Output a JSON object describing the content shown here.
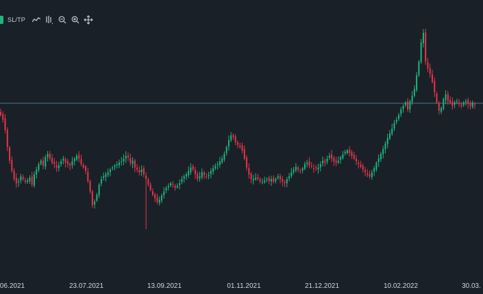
{
  "toolbar": {
    "sltp_label": "SL/TP",
    "icons": [
      "line-chart-icon",
      "bar-chart-icon",
      "zoom-out-icon",
      "zoom-in-icon",
      "crosshair-move-icon"
    ]
  },
  "colors": {
    "background": "#1a2027",
    "up": "#1fb57f",
    "down": "#e5354b",
    "price_line": "#4a7a8c",
    "axis_text": "#d0d7de"
  },
  "chart_data": {
    "type": "candlestick",
    "x_tick_labels": [
      "06.2021",
      "23.07.2021",
      "13.09.2021",
      "01.11.2021",
      "21.12.2021",
      "10.02.2022",
      "30.03."
    ],
    "grid": false,
    "current_price_line": true,
    "series_close_trace": [
      {
        "segment": "jun-2021",
        "values": [
          168,
          175,
          190,
          215,
          235,
          250,
          262,
          268,
          265,
          258,
          262,
          266,
          264,
          260,
          270
        ]
      },
      {
        "segment": "jul-2021",
        "values": [
          255,
          248,
          240,
          235,
          242,
          230,
          225,
          232,
          238,
          240,
          245,
          242,
          236,
          232,
          238,
          240,
          242,
          236,
          232,
          228,
          232,
          240,
          245,
          250
        ]
      },
      {
        "segment": "aug-2021",
        "values": [
          265,
          280,
          300,
          295,
          285,
          270,
          262,
          258,
          255,
          252,
          248,
          245,
          242,
          240,
          238,
          236,
          232,
          228,
          230,
          238,
          235,
          245,
          248,
          252
        ]
      },
      {
        "segment": "sep-2021",
        "values": [
          248,
          255,
          262,
          270,
          278,
          285,
          290,
          295,
          292,
          286,
          280,
          275,
          272,
          268,
          270,
          275,
          272,
          268,
          262,
          258,
          255,
          250,
          245,
          248,
          255,
          262
        ]
      },
      {
        "segment": "oct-2021",
        "values": [
          258,
          252,
          256,
          258,
          256,
          250,
          246,
          243,
          240,
          236,
          232,
          225,
          215,
          205,
          198,
          200,
          208,
          212,
          215,
          220,
          232,
          245,
          255,
          262
        ]
      },
      {
        "segment": "nov-2021",
        "values": [
          262,
          260,
          262,
          265,
          266,
          264,
          262,
          265,
          262,
          266,
          262,
          258,
          262,
          266,
          268,
          262,
          258,
          252,
          248,
          244,
          248,
          250,
          246,
          240,
          238,
          242,
          244,
          246
        ]
      },
      {
        "segment": "dec-2021",
        "values": [
          246,
          245,
          240,
          235,
          238,
          232,
          228,
          232,
          236,
          238,
          235,
          230,
          226,
          222,
          220,
          224,
          228,
          232,
          236,
          240,
          244,
          248,
          252,
          256,
          258,
          252
        ]
      },
      {
        "segment": "jan-2022",
        "values": [
          246,
          238,
          232,
          225,
          218,
          210,
          202,
          195,
          188,
          180,
          175,
          168,
          160,
          155,
          150,
          160,
          148,
          140,
          130,
          110,
          90,
          62,
          48,
          90,
          100,
          108,
          120,
          135
        ]
      },
      {
        "segment": "feb-mar-2022",
        "values": [
          150,
          162,
          158,
          145,
          138,
          148,
          150,
          155,
          150,
          148,
          152,
          155,
          150,
          148,
          152,
          155,
          150,
          153
        ]
      }
    ]
  },
  "watermark": ""
}
